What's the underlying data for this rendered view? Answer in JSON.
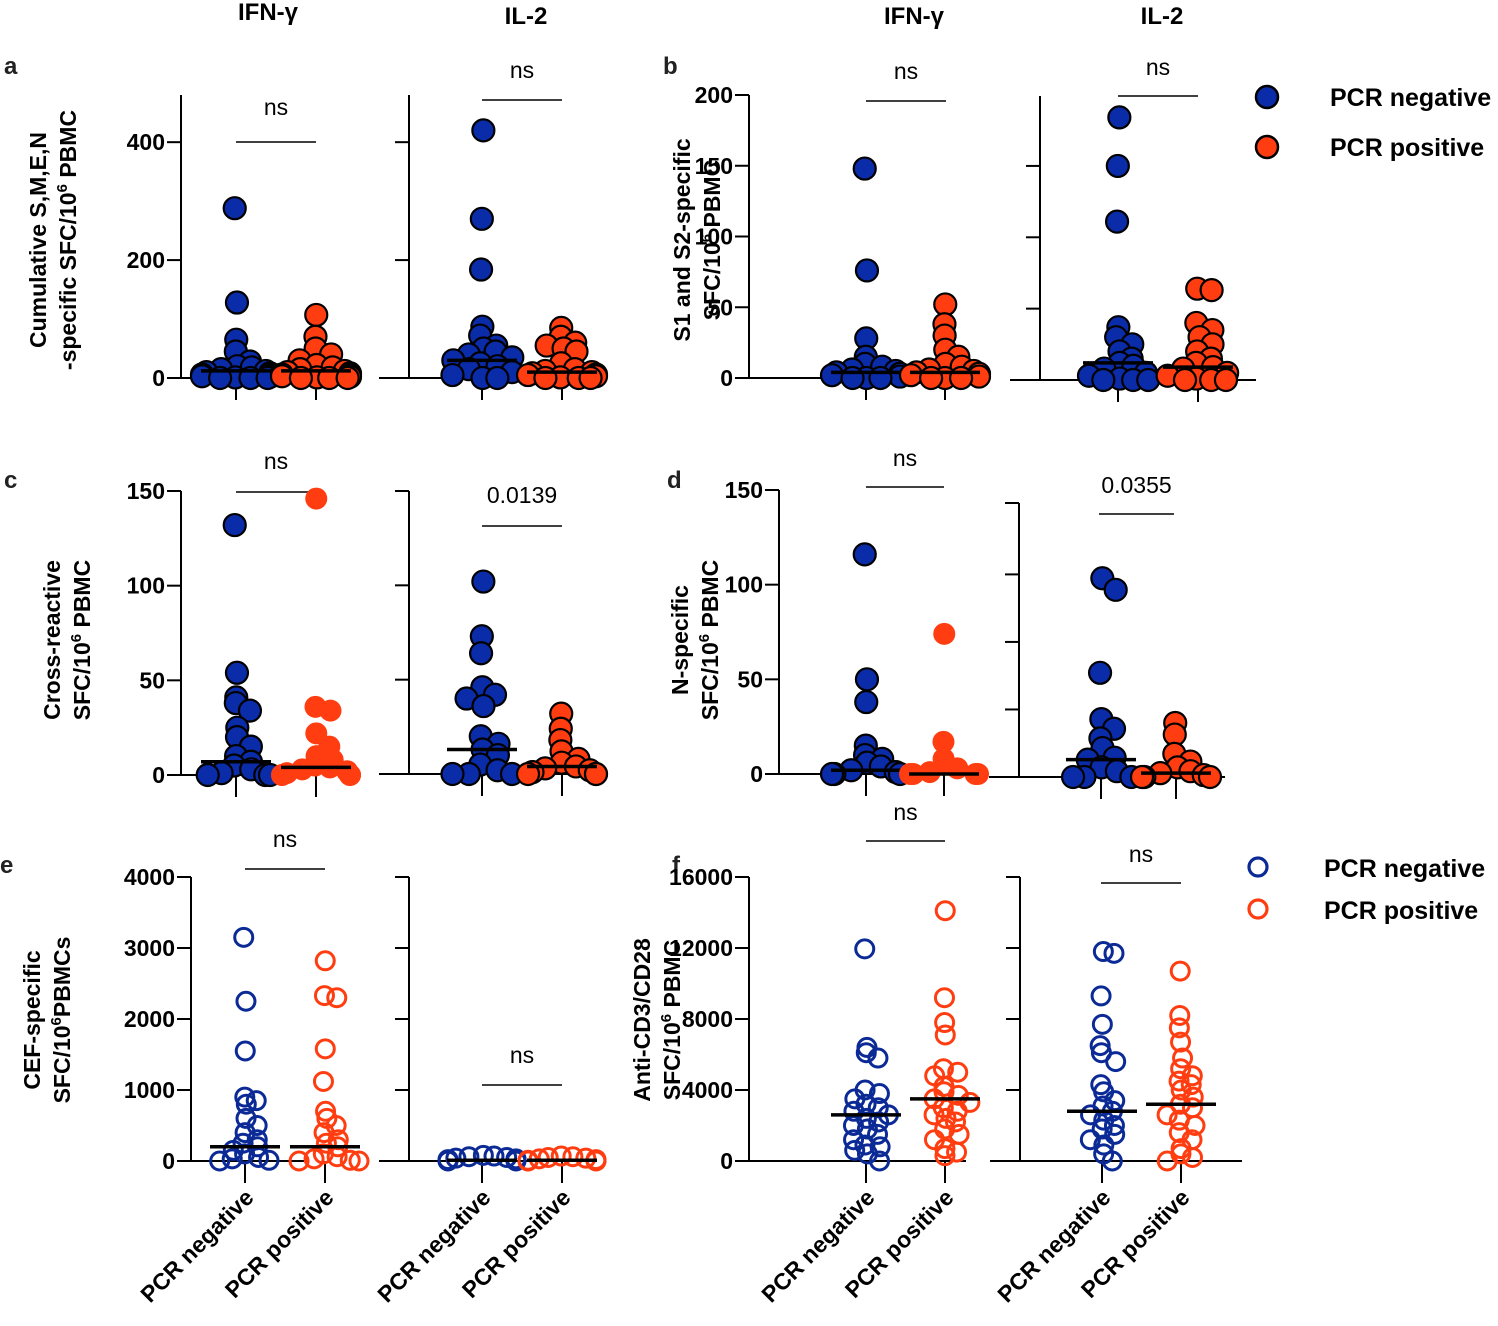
{
  "colors": {
    "negative": "#0a2ca8",
    "positive": "#ff3d10",
    "negative_open": "#0b2a96",
    "positive_open": "#ff3d10",
    "axis": "#000000"
  },
  "column_titles": [
    {
      "text": "IFN-γ"
    },
    {
      "text": "IL-2"
    },
    {
      "text": "IFN-γ"
    },
    {
      "text": "IL-2"
    }
  ],
  "legend_filled": {
    "items": [
      {
        "label": "PCR negative",
        "group": "negative"
      },
      {
        "label": "PCR positive",
        "group": "positive"
      }
    ]
  },
  "legend_open": {
    "items": [
      {
        "label": "PCR negative",
        "group": "negative"
      },
      {
        "label": "PCR positive",
        "group": "positive"
      }
    ]
  },
  "chart_data": [
    {
      "panel": "a",
      "type": "scatter",
      "subtype": "dot-plot-with-median",
      "ylabel_line1": "Cumulative S,M,E,N",
      "ylabel_line2": "-specific SFC/10",
      "ylabel_sup": "6",
      "ylabel_tail": " PBMC",
      "ylim": [
        0,
        480
      ],
      "yticks": [
        0,
        200,
        400
      ],
      "marker": "filled",
      "categories": [
        "PCR negative",
        "PCR positive"
      ],
      "subplots": [
        {
          "cytokine": "IFN-γ",
          "significance": "ns",
          "series": [
            {
              "name": "PCR negative",
              "median": 12,
              "values": [
                288,
                128,
                65,
                45,
                28,
                20,
                18,
                15,
                12,
                10,
                8,
                6,
                5,
                3,
                2,
                1,
                0,
                0,
                0
              ]
            },
            {
              "name": "PCR positive",
              "median": 12,
              "values": [
                107,
                70,
                50,
                40,
                30,
                22,
                18,
                15,
                12,
                10,
                8,
                6,
                5,
                3,
                2,
                1,
                0,
                0,
                0
              ]
            }
          ]
        },
        {
          "cytokine": "IL-2",
          "significance": "ns",
          "series": [
            {
              "name": "PCR negative",
              "median": 30,
              "values": [
                420,
                270,
                184,
                87,
                72,
                55,
                50,
                45,
                40,
                35,
                30,
                25,
                20,
                15,
                10,
                5,
                0,
                0
              ]
            },
            {
              "name": "PCR positive",
              "median": 10,
              "values": [
                85,
                70,
                60,
                55,
                50,
                45,
                25,
                15,
                12,
                10,
                8,
                6,
                5,
                3,
                1,
                0,
                0,
                0
              ]
            }
          ]
        }
      ]
    },
    {
      "panel": "b",
      "type": "scatter",
      "subtype": "dot-plot-with-median",
      "ylabel_line1": "S1 and S2-specific",
      "ylabel_line2": "SFC/10",
      "ylabel_sup": "6",
      "ylabel_tail": " PBMC",
      "ylim": [
        0,
        200
      ],
      "yticks": [
        0,
        50,
        100,
        150,
        200
      ],
      "marker": "filled",
      "categories": [
        "PCR negative",
        "PCR positive"
      ],
      "subplots": [
        {
          "cytokine": "IFN-γ",
          "significance": "ns",
          "series": [
            {
              "name": "PCR negative",
              "median": 4,
              "values": [
                148,
                76,
                28,
                15,
                10,
                8,
                6,
                5,
                4,
                3,
                2,
                1,
                0,
                0,
                0
              ]
            },
            {
              "name": "PCR positive",
              "median": 4,
              "values": [
                52,
                38,
                30,
                20,
                15,
                10,
                8,
                6,
                5,
                4,
                3,
                2,
                1,
                0,
                0,
                0
              ]
            }
          ]
        },
        {
          "cytokine": "IL-2",
          "significance": "ns",
          "series": [
            {
              "name": "PCR negative",
              "median": 12,
              "values": [
                184,
                150,
                111,
                37,
                30,
                25,
                20,
                15,
                12,
                10,
                8,
                5,
                3,
                1,
                0,
                0,
                0
              ]
            },
            {
              "name": "PCR positive",
              "median": 9,
              "values": [
                64,
                63,
                40,
                35,
                30,
                25,
                20,
                15,
                12,
                9,
                8,
                5,
                3,
                1,
                0,
                0,
                0
              ]
            }
          ]
        }
      ]
    },
    {
      "panel": "c",
      "type": "scatter",
      "subtype": "dot-plot-with-median",
      "ylabel_line1": "Cross-reactive",
      "ylabel_line2": "SFC/10",
      "ylabel_sup": "6",
      "ylabel_tail": " PBMC",
      "ylim": [
        0,
        160
      ],
      "yticks": [
        0,
        50,
        100,
        150
      ],
      "marker": "filled",
      "categories": [
        "PCR negative",
        "PCR positive"
      ],
      "subplots": [
        {
          "cytokine": "IFN-γ",
          "significance": "ns",
          "series": [
            {
              "name": "PCR negative",
              "median": 7,
              "values": [
                132,
                54,
                41,
                38,
                34,
                25,
                20,
                15,
                10,
                7,
                5,
                3,
                1,
                0,
                0,
                0
              ]
            },
            {
              "name": "PCR positive",
              "median": 4,
              "values": [
                146,
                36,
                34,
                22,
                15,
                10,
                8,
                5,
                4,
                3,
                2,
                1,
                0,
                0,
                0,
                0
              ]
            }
          ]
        },
        {
          "cytokine": "IL-2",
          "significance": "0.0139",
          "series": [
            {
              "name": "PCR negative",
              "median": 13,
              "values": [
                102,
                73,
                64,
                46,
                42,
                40,
                36,
                20,
                16,
                13,
                10,
                5,
                2,
                0,
                0,
                0
              ]
            },
            {
              "name": "PCR positive",
              "median": 4,
              "values": [
                32,
                24,
                18,
                12,
                8,
                6,
                4,
                3,
                2,
                1,
                0,
                0,
                0
              ]
            }
          ]
        }
      ]
    },
    {
      "panel": "d",
      "type": "scatter",
      "subtype": "dot-plot-with-median",
      "ylabel_line1": "N-specific",
      "ylabel_line2": "SFC/10",
      "ylabel_sup": "6",
      "ylabel_tail": " PBMC",
      "ylim": [
        0,
        150
      ],
      "yticks": [
        0,
        50,
        100,
        150
      ],
      "marker": "filled",
      "categories": [
        "PCR negative",
        "PCR positive"
      ],
      "subplots": [
        {
          "cytokine": "IFN-γ",
          "significance": "ns",
          "series": [
            {
              "name": "PCR negative",
              "median": 2,
              "values": [
                116,
                50,
                38,
                15,
                10,
                8,
                6,
                4,
                2,
                1,
                0,
                0,
                0
              ]
            },
            {
              "name": "PCR positive",
              "median": 0,
              "values": [
                74,
                17,
                8,
                5,
                3,
                1,
                0,
                0,
                0,
                0
              ]
            }
          ]
        },
        {
          "cytokine": "IL-2",
          "significance": "0.0355",
          "series": [
            {
              "name": "PCR negative",
              "median": 9,
              "values": [
                103,
                97,
                54,
                30,
                25,
                20,
                15,
                10,
                9,
                5,
                3,
                0,
                0,
                0
              ]
            },
            {
              "name": "PCR positive",
              "median": 2,
              "values": [
                28,
                22,
                12,
                8,
                5,
                3,
                2,
                1,
                0,
                0,
                0
              ]
            }
          ]
        }
      ]
    },
    {
      "panel": "e",
      "type": "scatter",
      "subtype": "dot-plot-with-median",
      "ylabel_line1": "CEF-specific",
      "ylabel_line2": "SFC/10",
      "ylabel_sup": "6",
      "ylabel_tail": "PBMCs",
      "ylim": [
        0,
        4000
      ],
      "yticks": [
        0,
        1000,
        2000,
        3000,
        4000
      ],
      "marker": "open",
      "categories": [
        "PCR negative",
        "PCR positive"
      ],
      "subplots": [
        {
          "cytokine": "IFN-γ",
          "significance": "ns",
          "series": [
            {
              "name": "PCR negative",
              "median": 200,
              "values": [
                3150,
                2250,
                1550,
                900,
                850,
                800,
                600,
                500,
                400,
                300,
                250,
                200,
                150,
                100,
                50,
                30,
                10,
                0
              ]
            },
            {
              "name": "PCR positive",
              "median": 200,
              "values": [
                2820,
                2330,
                2300,
                1580,
                1120,
                700,
                600,
                500,
                400,
                300,
                250,
                200,
                100,
                60,
                30,
                10,
                0,
                0
              ]
            }
          ]
        },
        {
          "cytokine": "IL-2",
          "significance": "ns",
          "series": [
            {
              "name": "PCR negative",
              "median": 10,
              "values": [
                80,
                70,
                60,
                50,
                40,
                30,
                20,
                10,
                5,
                0,
                0
              ]
            },
            {
              "name": "PCR positive",
              "median": 10,
              "values": [
                70,
                60,
                50,
                40,
                30,
                20,
                10,
                5,
                0,
                0,
                0
              ]
            }
          ]
        }
      ]
    },
    {
      "panel": "f",
      "type": "scatter",
      "subtype": "dot-plot-with-median",
      "ylabel_line1": "Anti-CD3/CD28",
      "ylabel_line2": "SFC/10",
      "ylabel_sup": "6",
      "ylabel_tail": " PBMC",
      "ylim": [
        0,
        16000
      ],
      "yticks": [
        0,
        4000,
        8000,
        12000,
        16000
      ],
      "marker": "open",
      "categories": [
        "PCR negative",
        "PCR positive"
      ],
      "subplots": [
        {
          "cytokine": "IFN-γ",
          "significance": "ns",
          "series": [
            {
              "name": "PCR negative",
              "median": 2600,
              "values": [
                11950,
                6400,
                6100,
                5800,
                4000,
                3800,
                3500,
                3200,
                3000,
                2800,
                2600,
                2400,
                2200,
                2000,
                1800,
                1500,
                1200,
                900,
                800,
                600,
                400,
                0
              ]
            },
            {
              "name": "PCR positive",
              "median": 3500,
              "values": [
                14100,
                9200,
                7800,
                7100,
                5200,
                5000,
                4800,
                4200,
                3900,
                3700,
                3500,
                3300,
                3000,
                2800,
                2600,
                2400,
                2200,
                1800,
                1500,
                1200,
                700,
                500,
                300
              ]
            }
          ]
        },
        {
          "cytokine": "IL-2",
          "significance": "ns",
          "series": [
            {
              "name": "PCR negative",
              "median": 2800,
              "values": [
                11800,
                11700,
                9300,
                7700,
                6500,
                6100,
                5600,
                4300,
                3900,
                3400,
                3100,
                2800,
                2600,
                2300,
                2000,
                1800,
                1500,
                1200,
                900,
                400,
                0
              ]
            },
            {
              "name": "PCR positive",
              "median": 3200,
              "values": [
                10700,
                8200,
                7500,
                6700,
                5800,
                5200,
                4800,
                4500,
                4300,
                4000,
                3600,
                3200,
                3000,
                2600,
                2300,
                2000,
                1600,
                1200,
                700,
                400,
                200,
                0
              ]
            }
          ]
        }
      ]
    }
  ]
}
